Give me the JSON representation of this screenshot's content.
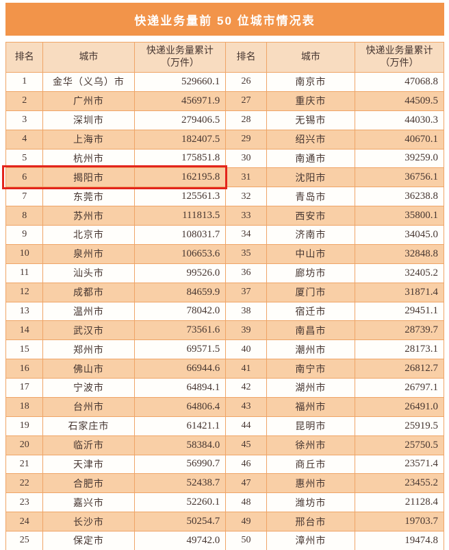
{
  "title": "快递业务量前 50 位城市情况表",
  "header": {
    "rank": "排名",
    "city": "城市",
    "volume_line1": "快递业务量累计",
    "volume_line2": "（万件）"
  },
  "highlight": {
    "rank": "6",
    "city": "揭阳市",
    "note": "red box around left-half row 6",
    "color": "#e3241c"
  },
  "colors": {
    "title_bar": "#f2944a",
    "header_bg": "#f8dcc0",
    "stripe_bg": "#f9cfa6",
    "row_bg": "#fffefb",
    "border": "#efa466",
    "text": "#453530",
    "title_text": "#ffffff",
    "highlight_red": "#e3241c"
  },
  "rows_left": [
    {
      "rank": "1",
      "city": "金华（义乌）市",
      "value": "529660.1"
    },
    {
      "rank": "2",
      "city": "广州市",
      "value": "456971.9"
    },
    {
      "rank": "3",
      "city": "深圳市",
      "value": "279406.5"
    },
    {
      "rank": "4",
      "city": "上海市",
      "value": "182407.5"
    },
    {
      "rank": "5",
      "city": "杭州市",
      "value": "175851.8"
    },
    {
      "rank": "6",
      "city": "揭阳市",
      "value": "162195.8"
    },
    {
      "rank": "7",
      "city": "东莞市",
      "value": "125561.3"
    },
    {
      "rank": "8",
      "city": "苏州市",
      "value": "111813.5"
    },
    {
      "rank": "9",
      "city": "北京市",
      "value": "108031.7"
    },
    {
      "rank": "10",
      "city": "泉州市",
      "value": "106653.6"
    },
    {
      "rank": "11",
      "city": "汕头市",
      "value": "99526.0"
    },
    {
      "rank": "12",
      "city": "成都市",
      "value": "84659.9"
    },
    {
      "rank": "13",
      "city": "温州市",
      "value": "78042.0"
    },
    {
      "rank": "14",
      "city": "武汉市",
      "value": "73561.6"
    },
    {
      "rank": "15",
      "city": "郑州市",
      "value": "69571.5"
    },
    {
      "rank": "16",
      "city": "佛山市",
      "value": "66944.6"
    },
    {
      "rank": "17",
      "city": "宁波市",
      "value": "64894.1"
    },
    {
      "rank": "18",
      "city": "台州市",
      "value": "64806.4"
    },
    {
      "rank": "19",
      "city": "石家庄市",
      "value": "61421.1"
    },
    {
      "rank": "20",
      "city": "临沂市",
      "value": "58384.0"
    },
    {
      "rank": "21",
      "city": "天津市",
      "value": "56990.7"
    },
    {
      "rank": "22",
      "city": "合肥市",
      "value": "52438.7"
    },
    {
      "rank": "23",
      "city": "嘉兴市",
      "value": "52260.1"
    },
    {
      "rank": "24",
      "city": "长沙市",
      "value": "50254.7"
    },
    {
      "rank": "25",
      "city": "保定市",
      "value": "49742.0"
    }
  ],
  "rows_right": [
    {
      "rank": "26",
      "city": "南京市",
      "value": "47068.8"
    },
    {
      "rank": "27",
      "city": "重庆市",
      "value": "44509.5"
    },
    {
      "rank": "28",
      "city": "无锡市",
      "value": "44030.3"
    },
    {
      "rank": "29",
      "city": "绍兴市",
      "value": "40670.1"
    },
    {
      "rank": "30",
      "city": "南通市",
      "value": "39259.0"
    },
    {
      "rank": "31",
      "city": "沈阳市",
      "value": "36756.1"
    },
    {
      "rank": "32",
      "city": "青岛市",
      "value": "36238.8"
    },
    {
      "rank": "33",
      "city": "西安市",
      "value": "35800.1"
    },
    {
      "rank": "34",
      "city": "济南市",
      "value": "34045.0"
    },
    {
      "rank": "35",
      "city": "中山市",
      "value": "32848.8"
    },
    {
      "rank": "36",
      "city": "廊坊市",
      "value": "32405.2"
    },
    {
      "rank": "37",
      "city": "厦门市",
      "value": "31871.4"
    },
    {
      "rank": "38",
      "city": "宿迁市",
      "value": "29451.1"
    },
    {
      "rank": "39",
      "city": "南昌市",
      "value": "28739.7"
    },
    {
      "rank": "40",
      "city": "潮州市",
      "value": "28173.1"
    },
    {
      "rank": "41",
      "city": "南宁市",
      "value": "26812.7"
    },
    {
      "rank": "42",
      "city": "湖州市",
      "value": "26797.1"
    },
    {
      "rank": "43",
      "city": "福州市",
      "value": "26491.0"
    },
    {
      "rank": "44",
      "city": "昆明市",
      "value": "25919.5"
    },
    {
      "rank": "45",
      "city": "徐州市",
      "value": "25750.5"
    },
    {
      "rank": "46",
      "city": "商丘市",
      "value": "23571.4"
    },
    {
      "rank": "47",
      "city": "惠州市",
      "value": "23455.2"
    },
    {
      "rank": "48",
      "city": "潍坊市",
      "value": "21128.4"
    },
    {
      "rank": "49",
      "city": "邢台市",
      "value": "19703.7"
    },
    {
      "rank": "50",
      "city": "漳州市",
      "value": "19474.8"
    }
  ]
}
